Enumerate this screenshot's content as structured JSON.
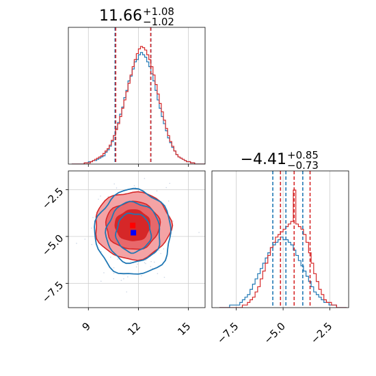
{
  "colors": {
    "series_a": "#1f77b4",
    "series_b": "#d62728",
    "series_b_fill_light": "#f4a3a5",
    "series_b_fill_mid": "#e8686b",
    "grid": "#cccccc"
  },
  "chart_data": {
    "type": "corner",
    "grid": true,
    "params": [
      {
        "title": {
          "base": "11.66",
          "plus": "+1.08",
          "minus": "−1.02"
        },
        "range": [
          7.8,
          16.0
        ],
        "ticks": [
          9,
          12,
          15
        ],
        "tick_labels": [
          "9",
          "12",
          "15"
        ]
      },
      {
        "title": {
          "base": "−4.41",
          "plus": "+0.85",
          "minus": "−0.73"
        },
        "range": [
          -8.8,
          -1.5
        ],
        "ticks": [
          -7.5,
          -5.0,
          -2.5
        ],
        "tick_labels": [
          "−7.5",
          "−5.0",
          "−2.5"
        ]
      }
    ],
    "hist1": {
      "bin_edges": [
        8.0,
        16.0
      ],
      "series_a": [
        0,
        0,
        0,
        0,
        0,
        0,
        1,
        1,
        2,
        2,
        3,
        3,
        4,
        5,
        6,
        7,
        10,
        12,
        15,
        19,
        24,
        30,
        35,
        42,
        48,
        56,
        62,
        70,
        74,
        80,
        86,
        88,
        92,
        94,
        92,
        90,
        86,
        82,
        76,
        70,
        62,
        54,
        47,
        40,
        34,
        28,
        22,
        18,
        14,
        11,
        8,
        6,
        5,
        4,
        3,
        2,
        2,
        1,
        1,
        0,
        0,
        0,
        0,
        0
      ],
      "series_b": [
        0,
        0,
        0,
        0,
        0,
        0,
        1,
        1,
        1,
        2,
        3,
        4,
        5,
        6,
        7,
        9,
        11,
        13,
        16,
        20,
        24,
        29,
        34,
        40,
        47,
        54,
        61,
        68,
        75,
        82,
        88,
        93,
        97,
        99,
        98,
        96,
        92,
        88,
        82,
        75,
        67,
        59,
        51,
        44,
        37,
        30,
        24,
        19,
        15,
        11,
        8,
        6,
        5,
        4,
        3,
        2,
        2,
        1,
        1,
        0,
        0,
        0,
        0,
        0
      ],
      "quantiles_a": [
        10.6,
        11.7,
        12.75
      ],
      "quantiles_b": [
        10.64,
        11.66,
        12.74
      ]
    },
    "hist2": {
      "bin_edges": [
        -8.4,
        -1.6
      ],
      "series_a": [
        0,
        0,
        0,
        0,
        1,
        1,
        1,
        1,
        2,
        3,
        4,
        5,
        7,
        9,
        11,
        13,
        15,
        17,
        19,
        21,
        23,
        24,
        25,
        26,
        27,
        26,
        26,
        25,
        24,
        22,
        20,
        18,
        16,
        14,
        12,
        10,
        8,
        6,
        5,
        4,
        3,
        2,
        2,
        1,
        1,
        1,
        0,
        0,
        0,
        0
      ],
      "series_b": [
        0,
        0,
        0,
        0,
        0,
        0,
        0,
        0,
        0,
        1,
        1,
        2,
        3,
        4,
        6,
        8,
        11,
        14,
        17,
        20,
        23,
        25,
        27,
        28,
        29,
        30,
        31,
        32,
        33,
        45,
        32,
        31,
        30,
        28,
        25,
        21,
        17,
        13,
        10,
        7,
        5,
        3,
        2,
        2,
        1,
        1,
        0,
        0,
        0,
        0
      ],
      "quantiles_a": [
        -5.55,
        -4.85,
        -3.95
      ],
      "quantiles_b": [
        -5.14,
        -4.41,
        -3.56
      ]
    },
    "scatter2d": {
      "center_a": [
        11.7,
        -4.8
      ],
      "center_b": [
        11.66,
        -4.41
      ],
      "sigma_a": [
        0.95,
        0.95
      ],
      "sigma_b": [
        0.95,
        0.75
      ]
    }
  }
}
